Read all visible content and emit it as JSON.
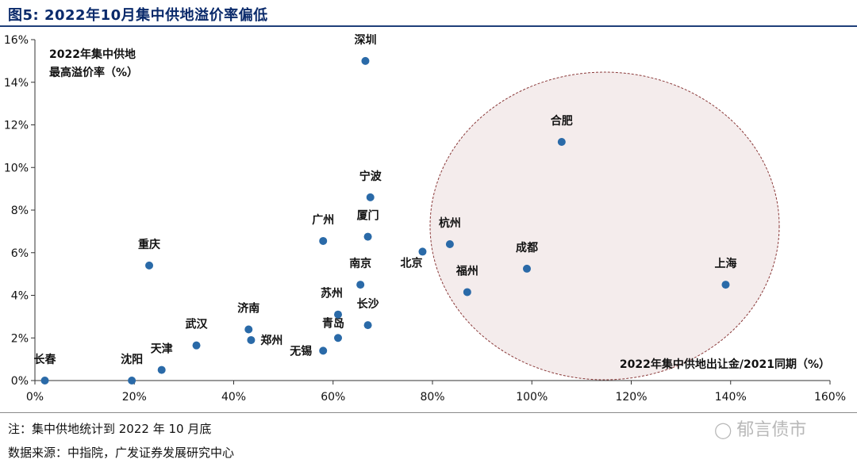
{
  "figure": {
    "title": "图5:  2022年10月集中供地溢价率偏低"
  },
  "chart_data": {
    "type": "scatter",
    "ylabel_lines": [
      "2022年集中供地",
      "最高溢价率（%）"
    ],
    "xlabel": "2022年集中供地出让金/2021同期（%）",
    "xlim": [
      0,
      160
    ],
    "ylim": [
      0,
      16
    ],
    "xticks": [
      0,
      20,
      40,
      60,
      80,
      100,
      120,
      140,
      160
    ],
    "yticks": [
      0,
      2,
      4,
      6,
      8,
      10,
      12,
      14,
      16
    ],
    "xtick_labels": [
      "0%",
      "20%",
      "40%",
      "60%",
      "80%",
      "100%",
      "120%",
      "140%",
      "160%"
    ],
    "ytick_labels": [
      "0%",
      "2%",
      "4%",
      "6%",
      "8%",
      "10%",
      "12%",
      "14%",
      "16%"
    ],
    "grid": false,
    "points": [
      {
        "name": "长春",
        "x": 2,
        "y": 0
      },
      {
        "name": "沈阳",
        "x": 19.5,
        "y": 0
      },
      {
        "name": "天津",
        "x": 25.5,
        "y": 0.5
      },
      {
        "name": "武汉",
        "x": 32.5,
        "y": 1.65
      },
      {
        "name": "重庆",
        "x": 23,
        "y": 5.4
      },
      {
        "name": "济南",
        "x": 43,
        "y": 2.4
      },
      {
        "name": "郑州",
        "x": 43.5,
        "y": 1.9
      },
      {
        "name": "无锡",
        "x": 58,
        "y": 1.4
      },
      {
        "name": "青岛",
        "x": 61,
        "y": 2.0
      },
      {
        "name": "苏州",
        "x": 61,
        "y": 3.1
      },
      {
        "name": "南京",
        "x": 65.5,
        "y": 4.5
      },
      {
        "name": "长沙",
        "x": 67,
        "y": 2.6
      },
      {
        "name": "广州",
        "x": 58,
        "y": 6.55
      },
      {
        "name": "厦门",
        "x": 67,
        "y": 6.75
      },
      {
        "name": "宁波",
        "x": 67.5,
        "y": 8.6
      },
      {
        "name": "深圳",
        "x": 66.5,
        "y": 15.0
      },
      {
        "name": "北京",
        "x": 78,
        "y": 6.05
      },
      {
        "name": "杭州",
        "x": 83.5,
        "y": 6.4
      },
      {
        "name": "福州",
        "x": 87,
        "y": 4.15
      },
      {
        "name": "成都",
        "x": 99,
        "y": 5.25
      },
      {
        "name": "合肥",
        "x": 106,
        "y": 11.2
      },
      {
        "name": "上海",
        "x": 139,
        "y": 4.5
      }
    ],
    "marker_color": "#2a6aa8",
    "ellipse_color": "#8b3a3a",
    "ellipse_fill": "#f4ecec"
  },
  "footer": {
    "note": "注：集中供地统计到 2022 年 10 月底",
    "source": "数据来源：中指院，广发证券发展研究中心",
    "watermark": "郁言债市",
    "watermark_icon": "wechat-icon"
  }
}
